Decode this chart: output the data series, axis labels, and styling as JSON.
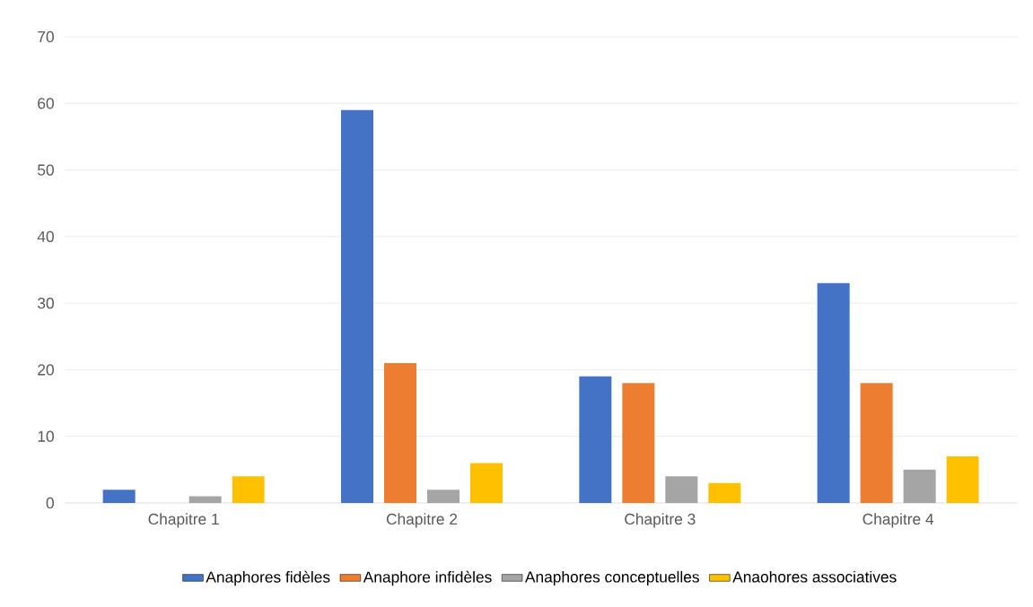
{
  "chart_data": {
    "type": "bar",
    "categories": [
      "Chapitre 1",
      "Chapitre 2",
      "Chapitre 3",
      "Chapitre 4"
    ],
    "series": [
      {
        "name": "Anaphores fidèles",
        "color": "#4472c4",
        "values": [
          2,
          59,
          19,
          33
        ]
      },
      {
        "name": "Anaphore infidèles",
        "color": "#ed7d31",
        "values": [
          0,
          21,
          18,
          18
        ]
      },
      {
        "name": "Anaphores conceptuelles",
        "color": "#a5a5a5",
        "values": [
          1,
          2,
          4,
          5
        ]
      },
      {
        "name": "Anaohores associatives",
        "color": "#ffc000",
        "values": [
          4,
          6,
          3,
          7
        ]
      }
    ],
    "ylim": [
      0,
      70
    ],
    "yticks": [
      0,
      10,
      20,
      30,
      40,
      50,
      60,
      70
    ],
    "grid": "y",
    "legend": "bottom"
  }
}
